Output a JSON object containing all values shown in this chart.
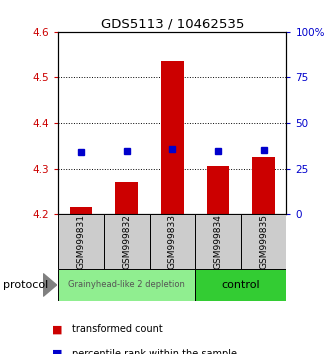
{
  "title": "GDS5113 / 10462535",
  "samples": [
    "GSM999831",
    "GSM999832",
    "GSM999833",
    "GSM999834",
    "GSM999835"
  ],
  "bar_values": [
    4.215,
    4.27,
    4.535,
    4.305,
    4.325
  ],
  "bar_bottom": 4.2,
  "percentile_values": [
    0.34,
    0.345,
    0.355,
    0.345,
    0.35
  ],
  "ylim_left": [
    4.2,
    4.6
  ],
  "ylim_right": [
    0.0,
    1.0
  ],
  "yticks_left": [
    4.2,
    4.3,
    4.4,
    4.5,
    4.6
  ],
  "yticks_right": [
    0.0,
    0.25,
    0.5,
    0.75,
    1.0
  ],
  "ytick_labels_right": [
    "0",
    "25",
    "50",
    "75",
    "100%"
  ],
  "ytick_labels_left": [
    "4.2",
    "4.3",
    "4.4",
    "4.5",
    "4.6"
  ],
  "hgrid_values": [
    4.3,
    4.4,
    4.5
  ],
  "bar_color": "#cc0000",
  "percentile_color": "#0000cc",
  "group1_samples": [
    0,
    1,
    2
  ],
  "group2_samples": [
    3,
    4
  ],
  "group1_label": "Grainyhead-like 2 depletion",
  "group2_label": "control",
  "group1_bg": "#90ee90",
  "group2_bg": "#33cc33",
  "sample_bg": "#cccccc",
  "protocol_label": "protocol",
  "legend1": "transformed count",
  "legend2": "percentile rank within the sample",
  "bar_width": 0.5
}
